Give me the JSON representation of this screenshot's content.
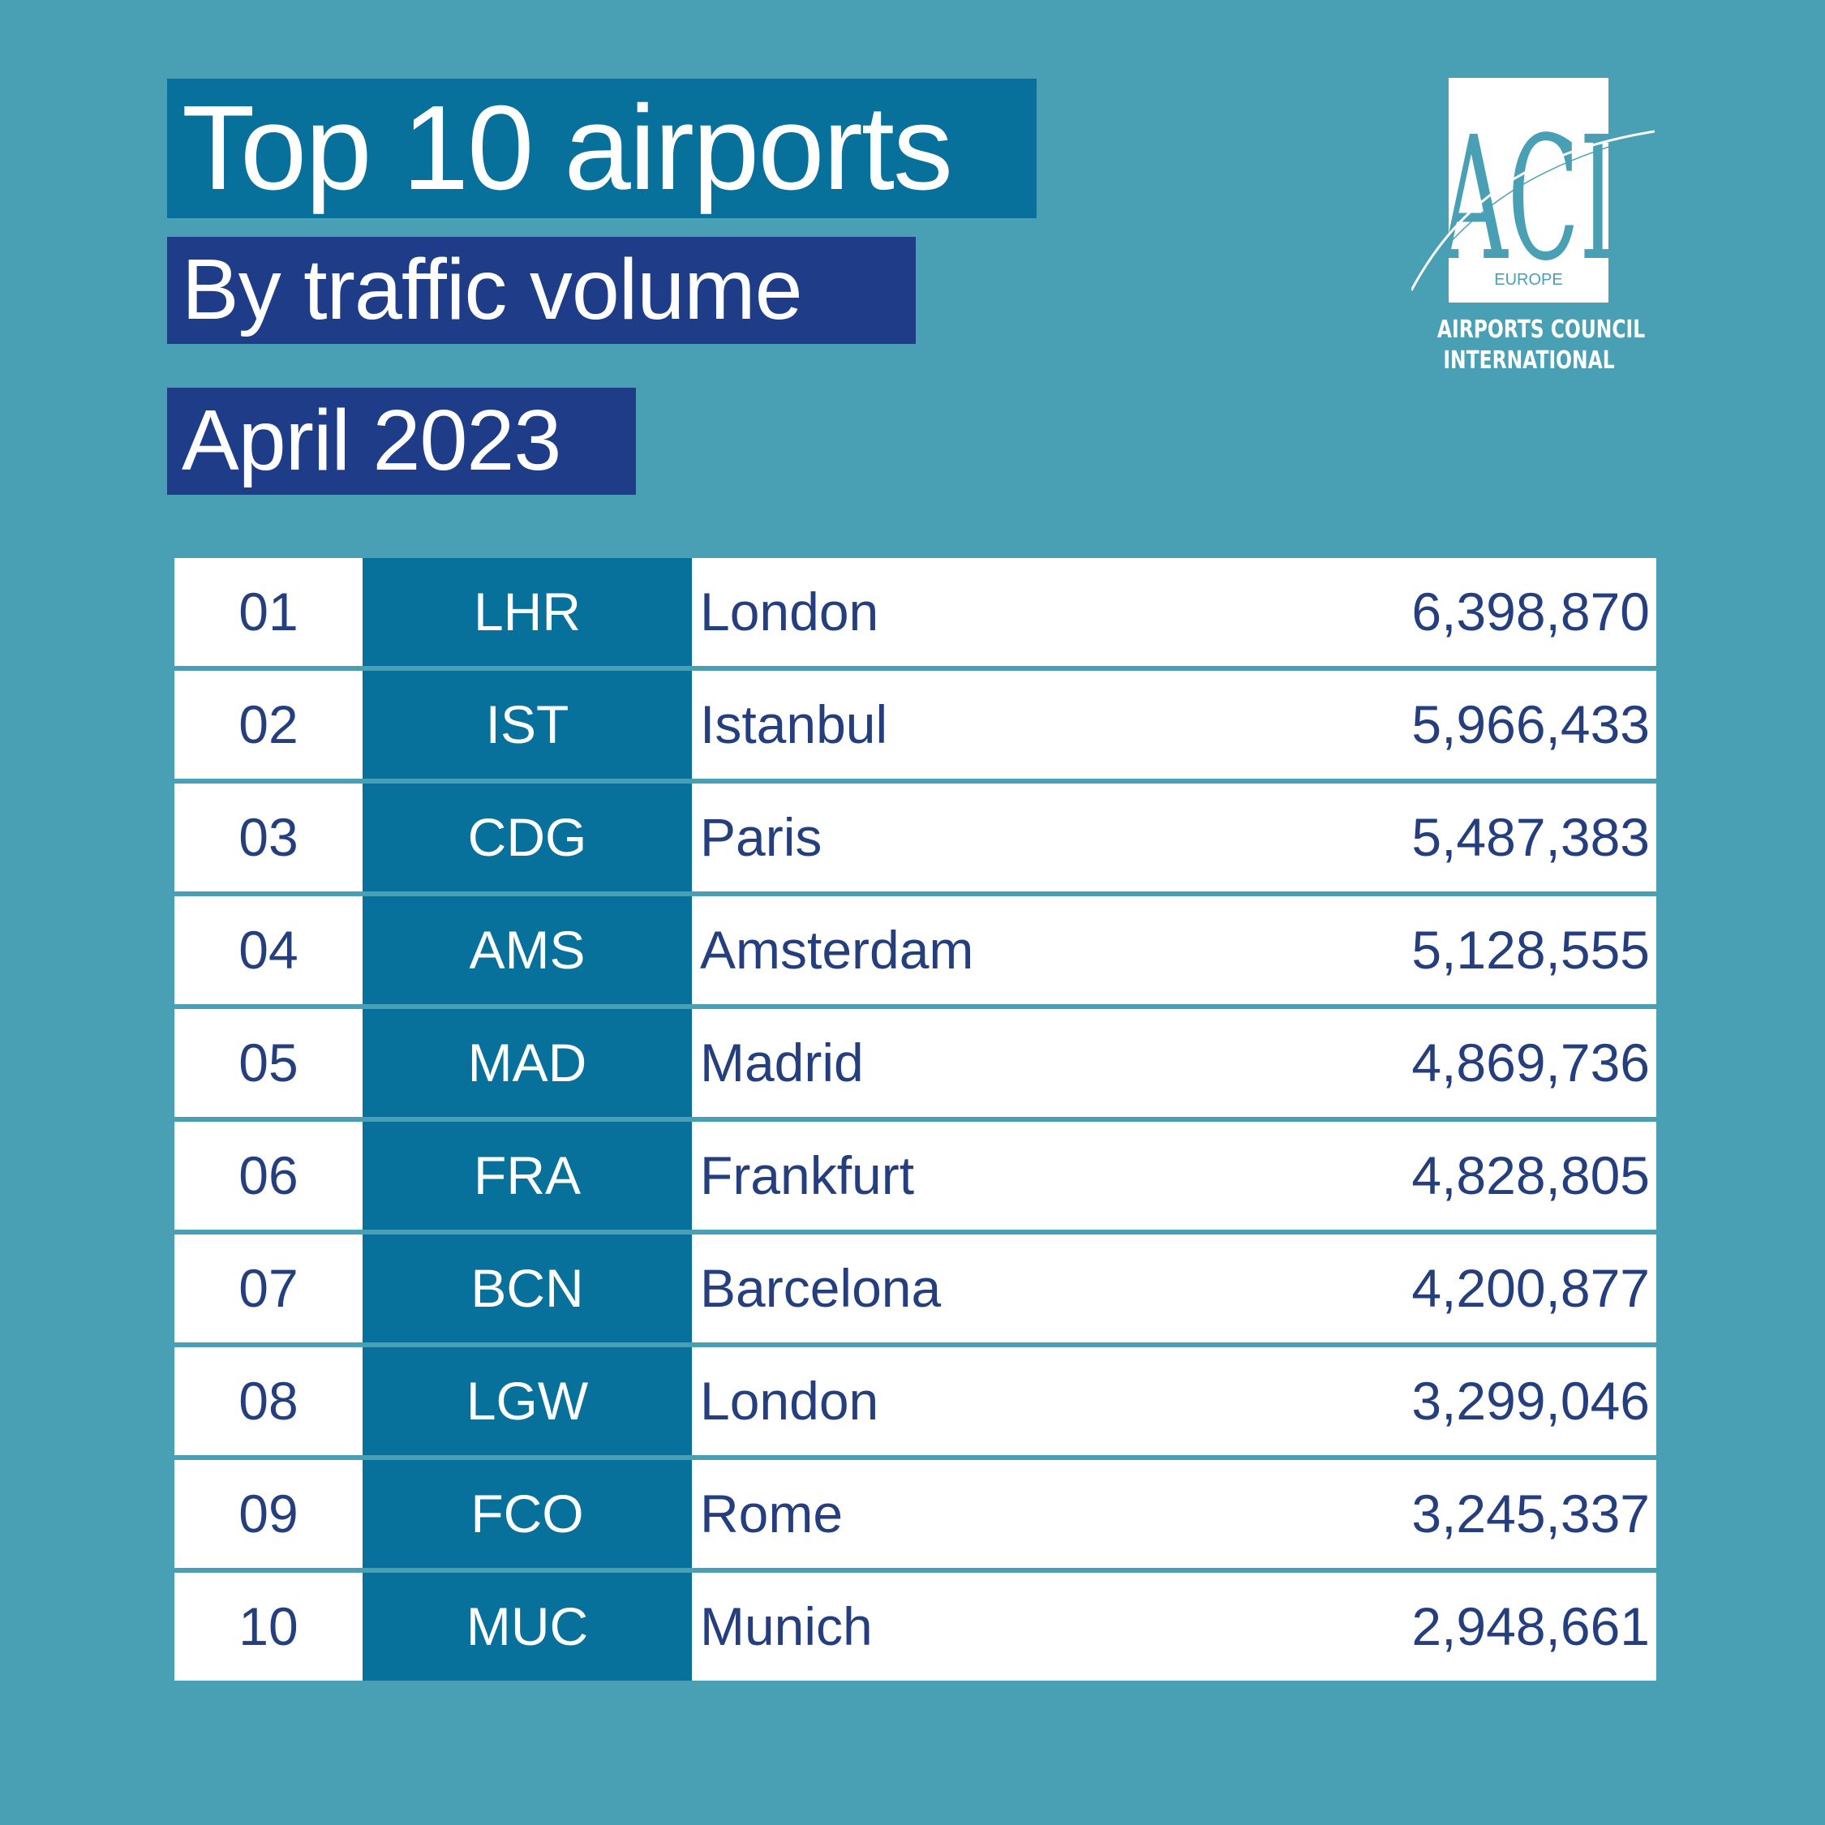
{
  "header": {
    "title": "Top 10 airports",
    "subtitle": "By traffic volume",
    "period": "April 2023"
  },
  "logo": {
    "mark": "ACI",
    "region": "EUROPE",
    "line1": "AIRPORTS COUNCIL",
    "line2": "INTERNATIONAL"
  },
  "rows": [
    {
      "rank": "01",
      "code": "LHR",
      "city": "London",
      "passengers": "6,398,870"
    },
    {
      "rank": "02",
      "code": "IST",
      "city": "Istanbul",
      "passengers": "5,966,433"
    },
    {
      "rank": "03",
      "code": "CDG",
      "city": "Paris",
      "passengers": "5,487,383"
    },
    {
      "rank": "04",
      "code": "AMS",
      "city": "Amsterdam",
      "passengers": "5,128,555"
    },
    {
      "rank": "05",
      "code": "MAD",
      "city": "Madrid",
      "passengers": "4,869,736"
    },
    {
      "rank": "06",
      "code": "FRA",
      "city": "Frankfurt",
      "passengers": "4,828,805"
    },
    {
      "rank": "07",
      "code": "BCN",
      "city": "Barcelona",
      "passengers": "4,200,877"
    },
    {
      "rank": "08",
      "code": "LGW",
      "city": "London",
      "passengers": "3,299,046"
    },
    {
      "rank": "09",
      "code": "FCO",
      "city": "Rome",
      "passengers": "3,245,337"
    },
    {
      "rank": "10",
      "code": "MUC",
      "city": "Munich",
      "passengers": "2,948,661"
    }
  ],
  "colors": {
    "background": "#49a0b4",
    "teal_box": "#07709b",
    "navy_box": "#1f3c88",
    "text_navy": "#243e7e"
  }
}
